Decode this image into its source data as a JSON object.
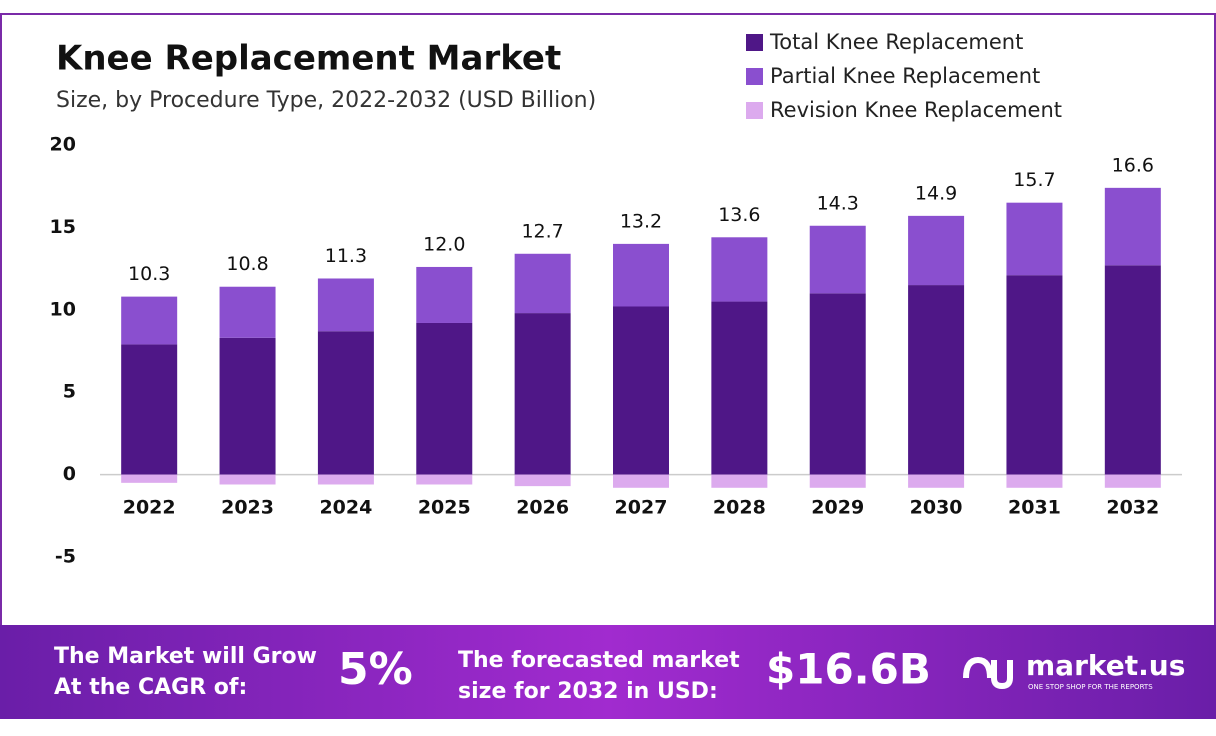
{
  "chart_data": {
    "type": "stacked-bar",
    "title": "Knee Replacement Market",
    "subtitle": "Size, by Procedure Type, 2022-2032 (USD Billion)",
    "categories": [
      "2022",
      "2023",
      "2024",
      "2025",
      "2026",
      "2027",
      "2028",
      "2029",
      "2030",
      "2031",
      "2032"
    ],
    "series": [
      {
        "name": "Total Knee Replacement",
        "color": "#4f1787",
        "values": [
          7.9,
          8.3,
          8.7,
          9.2,
          9.8,
          10.2,
          10.5,
          11.0,
          11.5,
          12.1,
          12.7
        ]
      },
      {
        "name": "Partial Knee Replacement",
        "color": "#8a4fcf",
        "values": [
          2.9,
          3.1,
          3.2,
          3.4,
          3.6,
          3.8,
          3.9,
          4.1,
          4.2,
          4.4,
          4.7
        ]
      },
      {
        "name": "Revision Knee Replacement",
        "color": "#dcaaee",
        "values": [
          -0.5,
          -0.6,
          -0.6,
          -0.6,
          -0.7,
          -0.8,
          -0.8,
          -0.8,
          -0.8,
          -0.8,
          -0.8
        ]
      }
    ],
    "totals": [
      10.3,
      10.8,
      11.3,
      12.0,
      12.7,
      13.2,
      13.6,
      14.3,
      14.9,
      15.7,
      16.6
    ],
    "total_labels": [
      "10.3",
      "10.8",
      "11.3",
      "12.0",
      "12.7",
      "13.2",
      "13.6",
      "14.3",
      "14.9",
      "15.7",
      "16.6"
    ],
    "ylim": [
      -5,
      20
    ],
    "yticks": [
      -5,
      0,
      5,
      10,
      15,
      20
    ]
  },
  "footer": {
    "cagr_text": [
      "The Market will Grow",
      "At the CAGR of:"
    ],
    "cagr_value": "5%",
    "forecast_text": [
      "The forecasted market",
      "size for 2032 in USD:"
    ],
    "forecast_value": "$16.6B",
    "brand": "market.us",
    "tagline": "ONE STOP SHOP FOR THE REPORTS"
  }
}
